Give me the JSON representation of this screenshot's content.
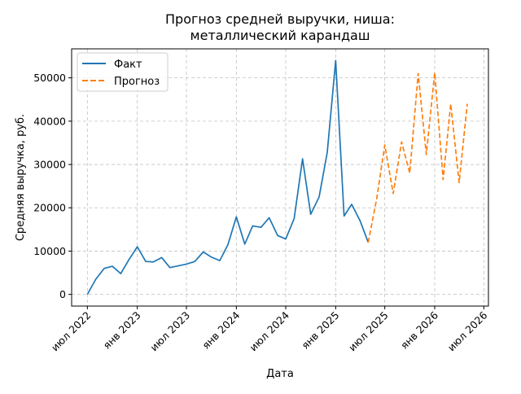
{
  "chart_data": {
    "type": "line",
    "title": [
      "Прогноз средней выручки, ниша:",
      "металлический карандаш"
    ],
    "xlabel": "Дата",
    "ylabel": "Средняя выручка, руб.",
    "xlim": [
      "2022-05-04",
      "2026-07-18"
    ],
    "ylim": [
      -2700,
      56700
    ],
    "yticks": [
      0,
      10000,
      20000,
      30000,
      40000,
      50000
    ],
    "xticks": [
      {
        "date": "2022-07-01",
        "label": "июл 2022"
      },
      {
        "date": "2023-01-01",
        "label": "янв 2023"
      },
      {
        "date": "2023-07-01",
        "label": "июл 2023"
      },
      {
        "date": "2024-01-01",
        "label": "янв 2024"
      },
      {
        "date": "2024-07-01",
        "label": "июл 2024"
      },
      {
        "date": "2025-01-01",
        "label": "янв 2025"
      },
      {
        "date": "2025-07-01",
        "label": "июл 2025"
      },
      {
        "date": "2026-01-01",
        "label": "янв 2026"
      },
      {
        "date": "2026-07-01",
        "label": "июл 2026"
      }
    ],
    "grid": true,
    "legend": "top-left",
    "series": [
      {
        "name": "Факт",
        "color": "#1f77b4",
        "style": "solid",
        "points": [
          [
            "2022-07-01",
            0
          ],
          [
            "2022-08-01",
            3500
          ],
          [
            "2022-09-01",
            6000
          ],
          [
            "2022-10-01",
            6500
          ],
          [
            "2022-11-01",
            4800
          ],
          [
            "2022-12-01",
            8000
          ],
          [
            "2023-01-01",
            11000
          ],
          [
            "2023-02-01",
            7600
          ],
          [
            "2023-03-01",
            7500
          ],
          [
            "2023-04-01",
            8500
          ],
          [
            "2023-05-01",
            6200
          ],
          [
            "2023-06-01",
            6600
          ],
          [
            "2023-07-01",
            7000
          ],
          [
            "2023-08-01",
            7600
          ],
          [
            "2023-09-01",
            9800
          ],
          [
            "2023-10-01",
            8600
          ],
          [
            "2023-11-01",
            7800
          ],
          [
            "2023-12-01",
            11500
          ],
          [
            "2024-01-01",
            17900
          ],
          [
            "2024-02-01",
            11600
          ],
          [
            "2024-03-01",
            15800
          ],
          [
            "2024-04-01",
            15500
          ],
          [
            "2024-05-01",
            17700
          ],
          [
            "2024-06-01",
            13600
          ],
          [
            "2024-07-01",
            12800
          ],
          [
            "2024-08-01",
            17500
          ],
          [
            "2024-09-01",
            31300
          ],
          [
            "2024-10-01",
            18500
          ],
          [
            "2024-11-01",
            22500
          ],
          [
            "2024-12-01",
            32800
          ],
          [
            "2025-01-01",
            54000
          ],
          [
            "2025-02-01",
            18100
          ],
          [
            "2025-03-01",
            20800
          ],
          [
            "2025-04-01",
            17000
          ],
          [
            "2025-05-01",
            12000
          ]
        ]
      },
      {
        "name": "Прогноз",
        "color": "#ff7f0e",
        "style": "dashed",
        "points": [
          [
            "2025-05-01",
            12000
          ],
          [
            "2025-06-01",
            22000
          ],
          [
            "2025-07-01",
            34500
          ],
          [
            "2025-08-01",
            23300
          ],
          [
            "2025-09-01",
            35200
          ],
          [
            "2025-10-01",
            28000
          ],
          [
            "2025-11-01",
            51000
          ],
          [
            "2025-12-01",
            32300
          ],
          [
            "2026-01-01",
            51200
          ],
          [
            "2026-02-01",
            26500
          ],
          [
            "2026-03-01",
            44000
          ],
          [
            "2026-04-01",
            25800
          ],
          [
            "2026-05-01",
            44000
          ]
        ]
      }
    ]
  }
}
